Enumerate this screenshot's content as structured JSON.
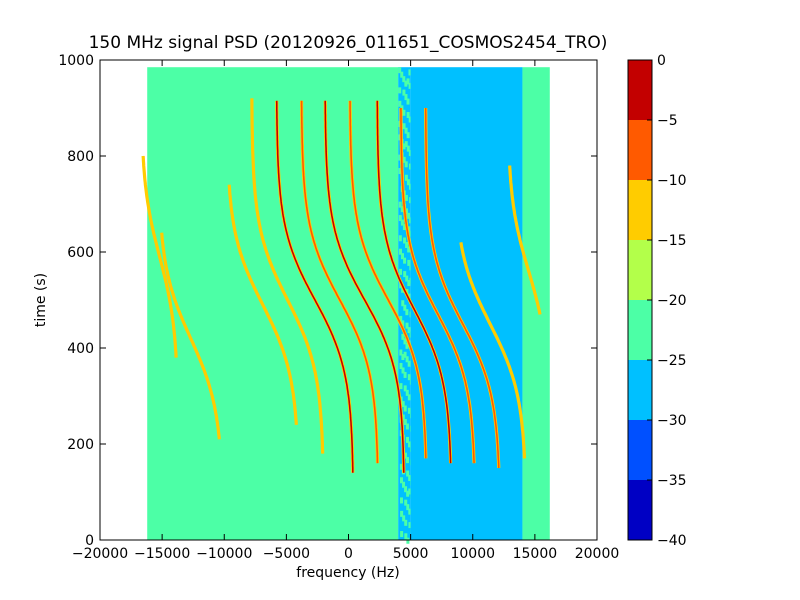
{
  "chart_data": {
    "type": "heatmap",
    "title": "150 MHz signal PSD (20120926_011651_COSMOS2454_TRO)",
    "xlabel": "frequency (Hz)",
    "ylabel": "time (s)",
    "xlim": [
      -20000,
      20000
    ],
    "ylim": [
      0,
      1000
    ],
    "xticks": [
      "−20000",
      "−15000",
      "−10000",
      "−5000",
      "0",
      "5000",
      "10000",
      "15000",
      "20000"
    ],
    "yticks": [
      "0",
      "200",
      "400",
      "600",
      "800",
      "1000"
    ],
    "data_extent": {
      "x": [
        -16200,
        16200
      ],
      "y": [
        0,
        985
      ]
    },
    "background_regions": [
      {
        "x_from": -16200,
        "x_to": 4000,
        "level": -22.5
      },
      {
        "x_from": 4000,
        "x_to": 5000,
        "level": "mixed"
      },
      {
        "x_from": 5000,
        "x_to": 14000,
        "level": -27.5
      },
      {
        "x_from": 14000,
        "x_to": 16200,
        "level": -22.5
      }
    ],
    "signal_traces": [
      {
        "x_center": -15200,
        "t_center": 590,
        "t_range": [
          380,
          800
        ],
        "amplitude": 1500,
        "level": -15
      },
      {
        "x_center": -12700,
        "t_center": 420,
        "t_range": [
          210,
          640
        ],
        "amplitude": 2600,
        "level": -15
      },
      {
        "x_center": -6900,
        "t_center": 490,
        "t_range": [
          240,
          740
        ],
        "amplitude": 2900,
        "level": -15
      },
      {
        "x_center": -4900,
        "t_center": 500,
        "t_range": [
          180,
          920
        ],
        "amplitude": 2900,
        "level": -15
      },
      {
        "x_center": -2700,
        "t_center": 500,
        "t_range": [
          140,
          915
        ],
        "amplitude": 3100,
        "level": -5
      },
      {
        "x_center": -700,
        "t_center": 500,
        "t_range": [
          160,
          915
        ],
        "amplitude": 3100,
        "level": -10
      },
      {
        "x_center": 1300,
        "t_center": 500,
        "t_range": [
          140,
          915
        ],
        "amplitude": 3200,
        "level": -5
      },
      {
        "x_center": 3200,
        "t_center": 500,
        "t_range": [
          170,
          915
        ],
        "amplitude": 3100,
        "level": -10
      },
      {
        "x_center": 5300,
        "t_center": 480,
        "t_range": [
          160,
          915
        ],
        "amplitude": 3000,
        "level": -5
      },
      {
        "x_center": 7200,
        "t_center": 470,
        "t_range": [
          160,
          900
        ],
        "amplitude": 3000,
        "level": -10
      },
      {
        "x_center": 9200,
        "t_center": 450,
        "t_range": [
          150,
          900
        ],
        "amplitude": 3000,
        "level": -10
      },
      {
        "x_center": 11400,
        "t_center": 450,
        "t_range": [
          170,
          620
        ],
        "amplitude": 2900,
        "level": -15
      },
      {
        "x_center": 14500,
        "t_center": 560,
        "t_range": [
          470,
          780
        ],
        "amplitude": 1700,
        "level": -15
      }
    ],
    "colorbar": {
      "ticks": [
        "0",
        "−5",
        "−10",
        "−15",
        "−20",
        "−25",
        "−30",
        "−35",
        "−40"
      ],
      "levels": [
        {
          "from": -5,
          "to": 0,
          "color": "#c30000"
        },
        {
          "from": -10,
          "to": -5,
          "color": "#ff5a00"
        },
        {
          "from": -15,
          "to": -10,
          "color": "#ffcc00"
        },
        {
          "from": -20,
          "to": -15,
          "color": "#b3ff4a"
        },
        {
          "from": -25,
          "to": -20,
          "color": "#4cffa6"
        },
        {
          "from": -30,
          "to": -25,
          "color": "#00c0ff"
        },
        {
          "from": -35,
          "to": -30,
          "color": "#0050ff"
        },
        {
          "from": -40,
          "to": -35,
          "color": "#0000c4"
        }
      ]
    }
  }
}
